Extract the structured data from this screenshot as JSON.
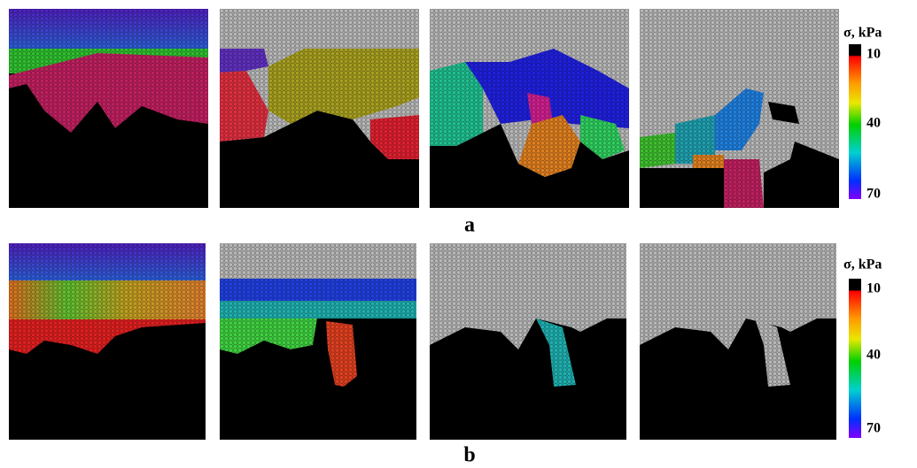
{
  "rows": [
    {
      "label": "a",
      "colorbar": {
        "title": "σ, kPa",
        "ticks": [
          "10",
          "40",
          "70"
        ]
      }
    },
    {
      "label": "b",
      "colorbar": {
        "title": "σ, kPa",
        "ticks": [
          "10",
          "40",
          "70"
        ]
      }
    }
  ]
}
